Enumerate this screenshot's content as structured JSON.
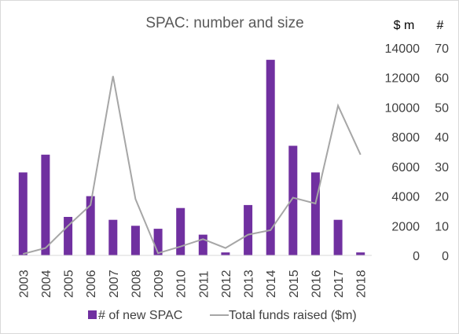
{
  "chart_data": {
    "type": "bar+line",
    "title": "SPAC: number and size",
    "categories": [
      "2003",
      "2004",
      "2005",
      "2006",
      "2007",
      "2008",
      "2009",
      "2010",
      "2011",
      "2012",
      "2013",
      "2014",
      "2015",
      "2016",
      "2017",
      "2018"
    ],
    "series": [
      {
        "name": "# of new SPAC",
        "type": "bar",
        "axis": "right",
        "color": "#7030a0",
        "values": [
          28,
          34,
          13,
          20,
          12,
          10,
          9,
          16,
          7,
          1,
          17,
          66,
          37,
          28,
          12,
          1
        ]
      },
      {
        "name": "Total funds raised ($m)",
        "type": "line",
        "axis": "left",
        "color": "#a6a6a6",
        "values": [
          100,
          500,
          2000,
          3400,
          12100,
          3800,
          150,
          600,
          1100,
          500,
          1400,
          1700,
          3900,
          3500,
          10100,
          6800
        ]
      }
    ],
    "left_axis": {
      "unit_label": "$ m",
      "range": [
        0,
        14000
      ],
      "ticks": [
        "0",
        "2000",
        "4000",
        "6000",
        "8000",
        "10000",
        "12000",
        "14000"
      ]
    },
    "right_axis": {
      "unit_label": "#",
      "range": [
        0,
        70
      ],
      "ticks": [
        "0",
        "10",
        "20",
        "30",
        "40",
        "50",
        "60",
        "70"
      ]
    },
    "grid": false,
    "legend": {
      "position": "bottom",
      "entries": [
        "# of new SPAC",
        "Total funds raised ($m)"
      ]
    }
  }
}
